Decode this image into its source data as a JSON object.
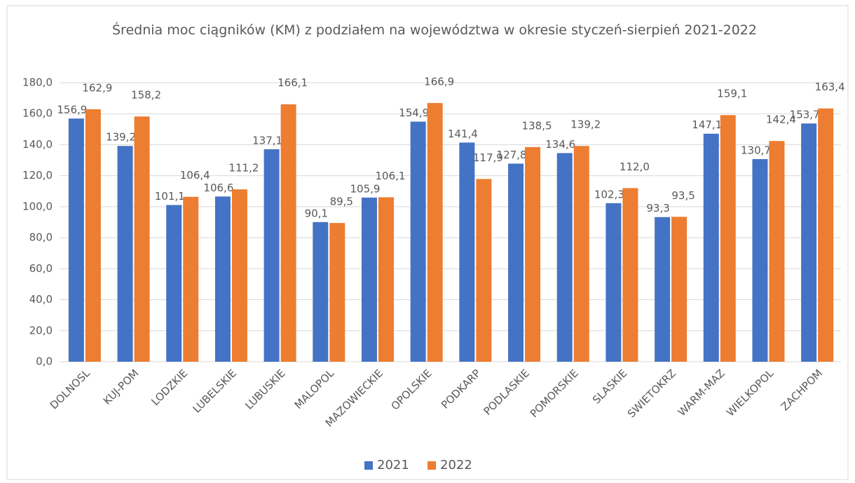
{
  "chart_data": {
    "type": "bar",
    "title": "Średnia moc ciągników (KM) z podziałem na województwa w okresie styczeń-sierpień 2021-2022",
    "categories": [
      "DOLNOSL",
      "KUJ-POM",
      "LODZKIE",
      "LUBELSKIE",
      "LUBUSKIE",
      "MALOPOL",
      "MAZOWIECKIE",
      "OPOLSKIE",
      "PODKARP",
      "PODLASKIE",
      "POMORSKIE",
      "SLASKIE",
      "SWIETOKRZ",
      "WARM-MAZ",
      "WIELKOPOL",
      "ZACHPOM"
    ],
    "series": [
      {
        "name": "2021",
        "color": "#4472c4",
        "values": [
          156.9,
          139.2,
          101.1,
          106.6,
          137.1,
          90.1,
          105.9,
          154.9,
          141.4,
          127.8,
          134.6,
          102.3,
          93.3,
          147.1,
          130.7,
          153.7
        ],
        "value_labels": [
          "156,9",
          "139,2",
          "101,1",
          "106,6",
          "137,1",
          "90,1",
          "105,9",
          "154,9",
          "141,4",
          "127,8",
          "134,6",
          "102,3",
          "93,3",
          "147,1",
          "130,7",
          "153,7"
        ]
      },
      {
        "name": "2022",
        "color": "#ed7d31",
        "values": [
          162.9,
          158.2,
          106.4,
          111.2,
          166.1,
          89.5,
          106.1,
          166.9,
          117.9,
          138.5,
          139.2,
          112.0,
          93.5,
          159.1,
          142.4,
          163.4
        ],
        "value_labels": [
          "162,9",
          "158,2",
          "106,4",
          "111,2",
          "166,1",
          "89,5",
          "106,1",
          "166,9",
          "117,9",
          "138,5",
          "139,2",
          "112,0",
          "93,5",
          "159,1",
          "142,4",
          "163,4"
        ]
      }
    ],
    "ylim": [
      0,
      180
    ],
    "yticks": [
      {
        "value": 0,
        "label": "0,0"
      },
      {
        "value": 20,
        "label": "20,0"
      },
      {
        "value": 40,
        "label": "40,0"
      },
      {
        "value": 60,
        "label": "60,0"
      },
      {
        "value": 80,
        "label": "80,0"
      },
      {
        "value": 100,
        "label": "100,0"
      },
      {
        "value": 120,
        "label": "120,0"
      },
      {
        "value": 140,
        "label": "140,0"
      },
      {
        "value": 160,
        "label": "160,0"
      },
      {
        "value": 180,
        "label": "180,0"
      }
    ],
    "grid": true,
    "legend": "bottom"
  }
}
